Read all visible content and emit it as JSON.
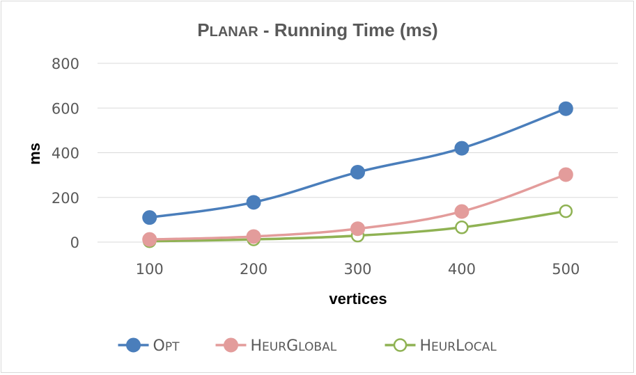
{
  "chart_data": {
    "type": "line",
    "title": "Planar - Running Time (ms)",
    "xlabel": "vertices",
    "ylabel": "ms",
    "categories": [
      "100",
      "200",
      "300",
      "400",
      "500"
    ],
    "ylim": [
      0,
      800
    ],
    "yticks": [
      "0",
      "200",
      "400",
      "600",
      "800"
    ],
    "grid": true,
    "legend_position": "bottom",
    "series": [
      {
        "name": "Opt",
        "values": [
          110,
          178,
          313,
          420,
          597
        ],
        "color": "#4a7ebb",
        "marker": "filled-circle"
      },
      {
        "name": "HeurGlobal",
        "values": [
          12,
          25,
          60,
          137,
          302
        ],
        "color": "#e39c9b",
        "marker": "filled-circle"
      },
      {
        "name": "HeurLocal",
        "values": [
          4,
          12,
          29,
          66,
          138
        ],
        "color": "#8fb253",
        "marker": "open-circle"
      }
    ]
  }
}
